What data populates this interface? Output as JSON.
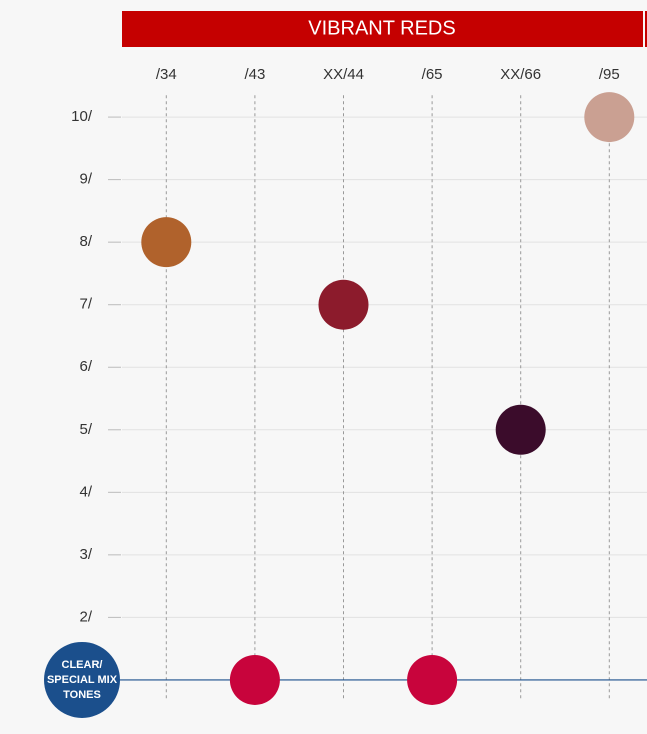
{
  "chart_data": {
    "type": "scatter",
    "title": "VIBRANT REDS",
    "categories": [
      "/34",
      "/43",
      "XX/44",
      "/65",
      "XX/66",
      "/95"
    ],
    "values": [
      8,
      1,
      7,
      1,
      5,
      10
    ],
    "colors": [
      "#b0622c",
      "#c8043c",
      "#8c1b2c",
      "#c8043c",
      "#3b0c2b",
      "#caa092"
    ],
    "ylim": [
      0.7,
      10.35
    ],
    "yticks": [
      {
        "value": 2,
        "label": "2/"
      },
      {
        "value": 3,
        "label": "3/"
      },
      {
        "value": 4,
        "label": "4/"
      },
      {
        "value": 5,
        "label": "5/"
      },
      {
        "value": 6,
        "label": "6/"
      },
      {
        "value": 7,
        "label": "7/"
      },
      {
        "value": 8,
        "label": "8/"
      },
      {
        "value": 9,
        "label": "9/"
      },
      {
        "value": 10,
        "label": "10/"
      }
    ],
    "grid": true,
    "reference_line": 1,
    "reference_label": [
      "CLEAR/",
      "SPECIAL MIX",
      "TONES"
    ],
    "reference_color": "#1b4f8c"
  }
}
